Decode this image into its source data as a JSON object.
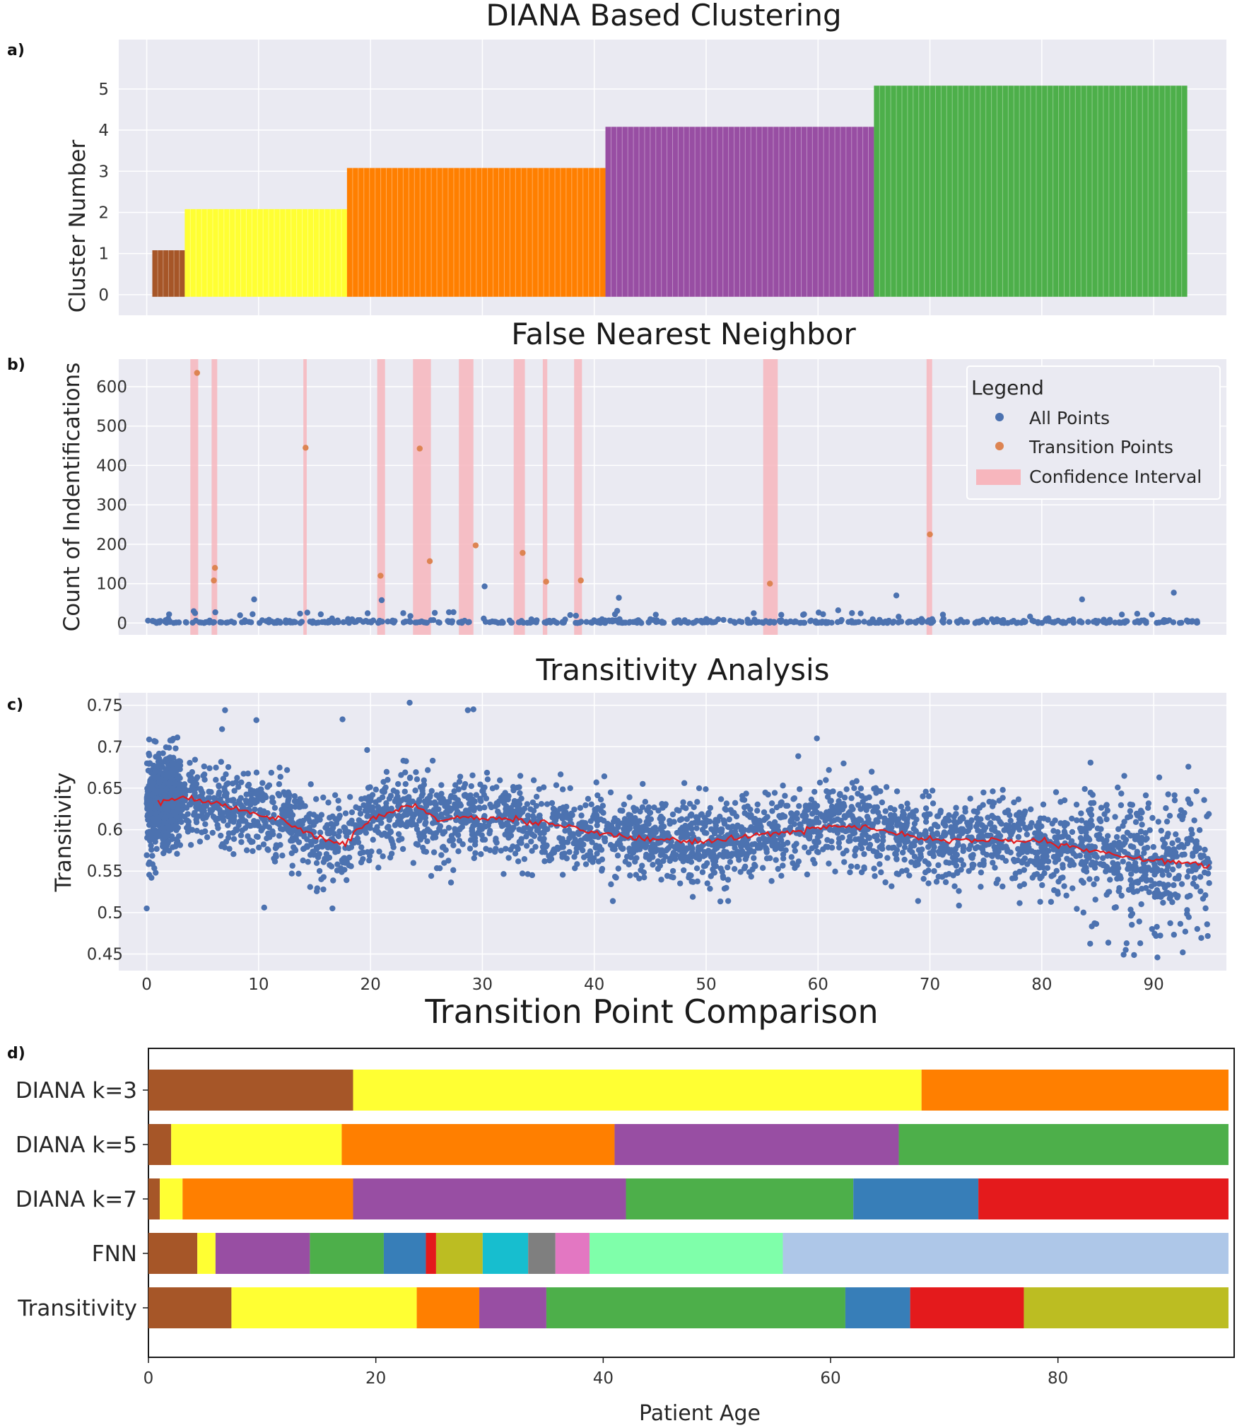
{
  "figure": {
    "panel_a_label": "a)",
    "panel_b_label": "b)",
    "panel_c_label": "c)",
    "panel_d_label": "d)"
  },
  "colors": {
    "panel_bg": "#eaeaf2",
    "grid": "#ffffff",
    "brown": "#a65628",
    "yellow": "#ffff33",
    "orange": "#ff7f00",
    "purple": "#984ea3",
    "green": "#4daf4a",
    "blue": "#377eb8",
    "red": "#e41a1c",
    "olive": "#bcbd22",
    "cyan": "#17becf",
    "gray": "#7f7f7f",
    "pink": "#e377c2",
    "mint": "#7fffaa",
    "lightblue": "#aec7e8",
    "points": "#4c72b0",
    "transition": "#dd8452",
    "ci": "#f7b6bd",
    "trend": "#e41a1c"
  },
  "chart_data": [
    {
      "id": "a",
      "type": "bar",
      "title": "DIANA Based Clustering",
      "xlabel": "",
      "ylabel": "Cluster Number",
      "xlim": [
        -2.5,
        96.5
      ],
      "ylim": [
        -0.5,
        6.2
      ],
      "yticks": [
        0,
        1,
        2,
        3,
        4,
        5
      ],
      "xgrid": [
        0,
        10,
        20,
        30,
        40,
        50,
        60,
        70,
        80,
        90
      ],
      "grid": true,
      "segments": [
        {
          "start": 0.5,
          "end": 3.4,
          "value": 1,
          "color": "brown"
        },
        {
          "start": 3.4,
          "end": 17.9,
          "value": 2,
          "color": "yellow"
        },
        {
          "start": 17.9,
          "end": 41.0,
          "value": 3,
          "color": "orange"
        },
        {
          "start": 41.0,
          "end": 65.0,
          "value": 4,
          "color": "purple"
        },
        {
          "start": 65.0,
          "end": 93.0,
          "value": 5,
          "color": "green"
        }
      ]
    },
    {
      "id": "b",
      "type": "scatter",
      "title": "False Nearest Neighbor",
      "xlabel": "",
      "ylabel": "Count of Indentifications",
      "xlim": [
        -2.5,
        96.5
      ],
      "ylim": [
        -30,
        670
      ],
      "yticks": [
        0,
        100,
        200,
        300,
        400,
        500,
        600
      ],
      "xgrid": [
        0,
        10,
        20,
        30,
        40,
        50,
        60,
        70,
        80,
        90
      ],
      "grid": true,
      "legend": {
        "title": "Legend",
        "position": "top-right",
        "entries": [
          "All Points",
          "Transition Points",
          "Confidence Interval"
        ]
      },
      "confidence_intervals": [
        [
          3.9,
          4.6
        ],
        [
          5.8,
          6.3
        ],
        [
          14.0,
          14.3
        ],
        [
          20.6,
          21.3
        ],
        [
          23.8,
          25.4
        ],
        [
          27.9,
          29.2
        ],
        [
          32.8,
          33.8
        ],
        [
          35.4,
          35.8
        ],
        [
          38.2,
          38.9
        ],
        [
          55.1,
          56.4
        ],
        [
          69.7,
          70.2
        ]
      ],
      "transition_points": [
        [
          4.5,
          635
        ],
        [
          6.1,
          140
        ],
        [
          6.0,
          108
        ],
        [
          14.2,
          445
        ],
        [
          20.9,
          120
        ],
        [
          24.4,
          443
        ],
        [
          25.3,
          157
        ],
        [
          29.4,
          197
        ],
        [
          33.6,
          178
        ],
        [
          35.7,
          105
        ],
        [
          38.8,
          108
        ],
        [
          55.7,
          100
        ],
        [
          70.0,
          225
        ]
      ],
      "all_points_note": "~600 blue points mostly between 0 and 30 across ages 0-94",
      "notable_points": [
        [
          30.2,
          93
        ],
        [
          9.6,
          60
        ],
        [
          21.0,
          58
        ],
        [
          42.2,
          64
        ],
        [
          67.0,
          70
        ],
        [
          83.6,
          60
        ],
        [
          91.8,
          77
        ],
        [
          4.2,
          30
        ],
        [
          2.0,
          22
        ]
      ]
    },
    {
      "id": "c",
      "type": "scatter",
      "title": "Transitivity Analysis",
      "xlabel": "",
      "ylabel": "Transitivity",
      "xlim": [
        -2.5,
        96.5
      ],
      "ylim": [
        0.43,
        0.765
      ],
      "yticks": [
        0.45,
        0.5,
        0.55,
        0.6,
        0.65,
        0.7,
        0.75
      ],
      "ytick_labels": [
        "0.45",
        "0.5",
        "0.55",
        "0.6",
        "0.65",
        "0.7",
        "0.75"
      ],
      "xticks": [
        0,
        10,
        20,
        30,
        40,
        50,
        60,
        70,
        80,
        90
      ],
      "grid": true,
      "trend": [
        [
          1.0,
          0.632
        ],
        [
          3.0,
          0.64
        ],
        [
          6.0,
          0.632
        ],
        [
          9.0,
          0.622
        ],
        [
          12.0,
          0.612
        ],
        [
          15.0,
          0.592
        ],
        [
          17.5,
          0.582
        ],
        [
          19.5,
          0.608
        ],
        [
          22.0,
          0.622
        ],
        [
          24.0,
          0.63
        ],
        [
          26.0,
          0.612
        ],
        [
          29.0,
          0.615
        ],
        [
          33.0,
          0.612
        ],
        [
          37.0,
          0.605
        ],
        [
          40.0,
          0.597
        ],
        [
          45.0,
          0.588
        ],
        [
          50.0,
          0.585
        ],
        [
          54.0,
          0.592
        ],
        [
          58.0,
          0.598
        ],
        [
          61.0,
          0.604
        ],
        [
          64.0,
          0.603
        ],
        [
          67.0,
          0.595
        ],
        [
          71.0,
          0.587
        ],
        [
          75.0,
          0.588
        ],
        [
          80.0,
          0.585
        ],
        [
          84.0,
          0.575
        ],
        [
          88.0,
          0.566
        ],
        [
          92.0,
          0.561
        ],
        [
          95.0,
          0.557
        ]
      ],
      "point_cloud": "dense blue scatter of ~4000 points, spread about +/-0.04 around the trend",
      "outliers": [
        [
          23.5,
          0.753
        ],
        [
          28.7,
          0.744
        ],
        [
          29.2,
          0.745
        ],
        [
          7.0,
          0.744
        ],
        [
          9.8,
          0.732
        ],
        [
          17.5,
          0.733
        ],
        [
          59.9,
          0.71
        ],
        [
          10.5,
          0.506
        ],
        [
          16.6,
          0.505
        ],
        [
          0.0,
          0.505
        ],
        [
          87.5,
          0.455
        ],
        [
          92.6,
          0.452
        ],
        [
          88.8,
          0.463
        ],
        [
          90.5,
          0.663
        ]
      ]
    },
    {
      "id": "d",
      "type": "bar",
      "orientation": "horizontal-stacked",
      "title": "Transition Point Comparison",
      "xlabel": "Patient Age",
      "xlim": [
        0,
        95.5
      ],
      "xticks": [
        0,
        20,
        40,
        60,
        80
      ],
      "categories": [
        "DIANA k=3",
        "DIANA k=5",
        "DIANA k=7",
        "FNN",
        "Transitivity"
      ],
      "rows": [
        {
          "label": "DIANA k=3",
          "bounds": [
            0,
            18,
            68,
            95
          ],
          "colors": [
            "brown",
            "yellow",
            "orange"
          ]
        },
        {
          "label": "DIANA k=5",
          "bounds": [
            0,
            2,
            17,
            41,
            66,
            95
          ],
          "colors": [
            "brown",
            "yellow",
            "orange",
            "purple",
            "green"
          ]
        },
        {
          "label": "DIANA k=7",
          "bounds": [
            0,
            1,
            3,
            18,
            42,
            62,
            73,
            95
          ],
          "colors": [
            "brown",
            "yellow",
            "orange",
            "purple",
            "green",
            "blue",
            "red"
          ]
        },
        {
          "label": "FNN",
          "bounds": [
            0,
            4.3,
            5.9,
            14.2,
            20.7,
            24.4,
            25.3,
            29.4,
            33.4,
            35.8,
            38.8,
            55.8,
            95
          ],
          "colors": [
            "brown",
            "yellow",
            "purple",
            "green",
            "blue",
            "red",
            "olive",
            "cyan",
            "gray",
            "pink",
            "mint",
            "lightblue"
          ]
        },
        {
          "label": "Transitivity",
          "bounds": [
            0,
            7.3,
            23.6,
            29.1,
            35.0,
            61.3,
            67.0,
            77.0,
            95
          ],
          "colors": [
            "brown",
            "yellow",
            "orange",
            "purple",
            "green",
            "blue",
            "red",
            "olive"
          ]
        }
      ]
    }
  ]
}
